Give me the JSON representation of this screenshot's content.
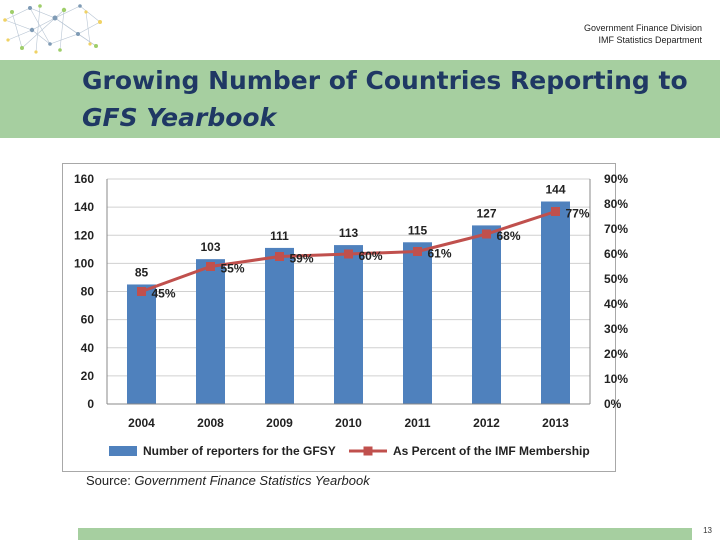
{
  "header": {
    "org_line1": "Government Finance Division",
    "org_line2": "IMF Statistics Department"
  },
  "slide": {
    "title_line1": "Growing Number of Countries Reporting to",
    "title_line2": "GFS Yearbook",
    "source_prefix": "Source: ",
    "source_title": "Government Finance Statistics Yearbook",
    "page_number": "13"
  },
  "colors": {
    "title_band": "#a6cfa0",
    "title_text": "#1f3864",
    "bar": "#4f81bd",
    "line": "#c0504d"
  },
  "chart_data": {
    "type": "bar",
    "categories": [
      "2004",
      "2008",
      "2009",
      "2010",
      "2011",
      "2012",
      "2013"
    ],
    "series": [
      {
        "name": "Number of reporters for the GFSY",
        "type": "bar",
        "axis": "left",
        "values": [
          85,
          103,
          111,
          113,
          115,
          127,
          144
        ],
        "labels": [
          "85",
          "103",
          "111",
          "113",
          "115",
          "127",
          "144"
        ]
      },
      {
        "name": "As Percent of the IMF Membership",
        "type": "line",
        "axis": "right",
        "values": [
          45,
          55,
          59,
          60,
          61,
          68,
          77
        ],
        "labels": [
          "45%",
          "55%",
          "59%",
          "60%",
          "61%",
          "68%",
          "77%"
        ]
      }
    ],
    "ylim": [
      0,
      160
    ],
    "y_ticks": [
      "0",
      "20",
      "40",
      "60",
      "80",
      "100",
      "120",
      "140",
      "160"
    ],
    "y2lim": [
      0,
      90
    ],
    "y2_ticks": [
      "0%",
      "10%",
      "20%",
      "30%",
      "40%",
      "50%",
      "60%",
      "70%",
      "80%",
      "90%"
    ],
    "grid": true,
    "legend_position": "bottom"
  }
}
